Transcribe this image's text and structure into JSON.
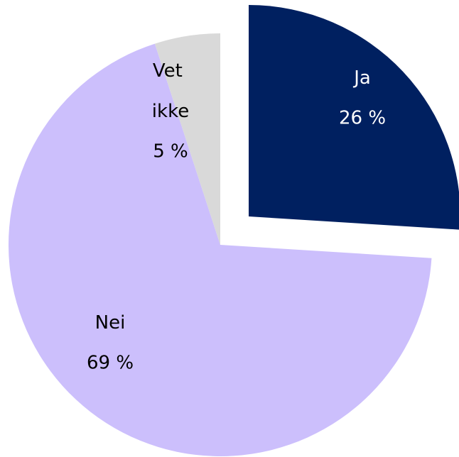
{
  "chart_data": {
    "type": "pie",
    "categories": [
      "Ja",
      "Nei",
      "Vet ikke"
    ],
    "values": [
      26,
      69,
      5
    ],
    "value_labels": [
      "26 %",
      "69 %",
      "5 %"
    ],
    "colors": [
      "#002060",
      "#ccbffc",
      "#d9d9d9"
    ]
  }
}
